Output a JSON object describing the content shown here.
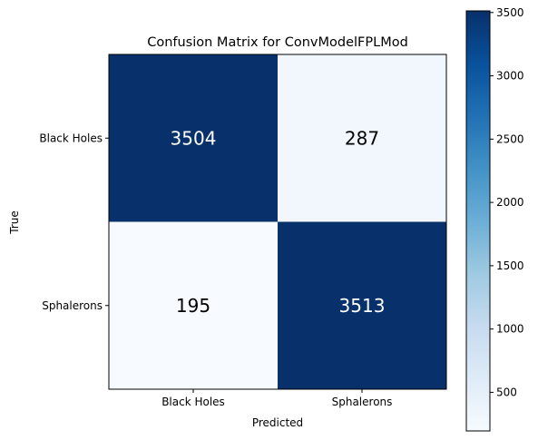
{
  "chart_data": {
    "type": "heatmap",
    "title": "Confusion Matrix for ConvModelFPLMod",
    "xlabel": "Predicted",
    "ylabel": "True",
    "x_categories": [
      "Black Holes",
      "Sphalerons"
    ],
    "y_categories": [
      "Black Holes",
      "Sphalerons"
    ],
    "values": [
      [
        3504,
        287
      ],
      [
        195,
        3513
      ]
    ],
    "colormap": "Blues",
    "colorbar": {
      "range": [
        195,
        3513
      ],
      "ticks": [
        500,
        1000,
        1500,
        2000,
        2500,
        3000,
        3500
      ]
    },
    "colors": {
      "low": "#f7fbff",
      "high": "#08306b"
    }
  }
}
